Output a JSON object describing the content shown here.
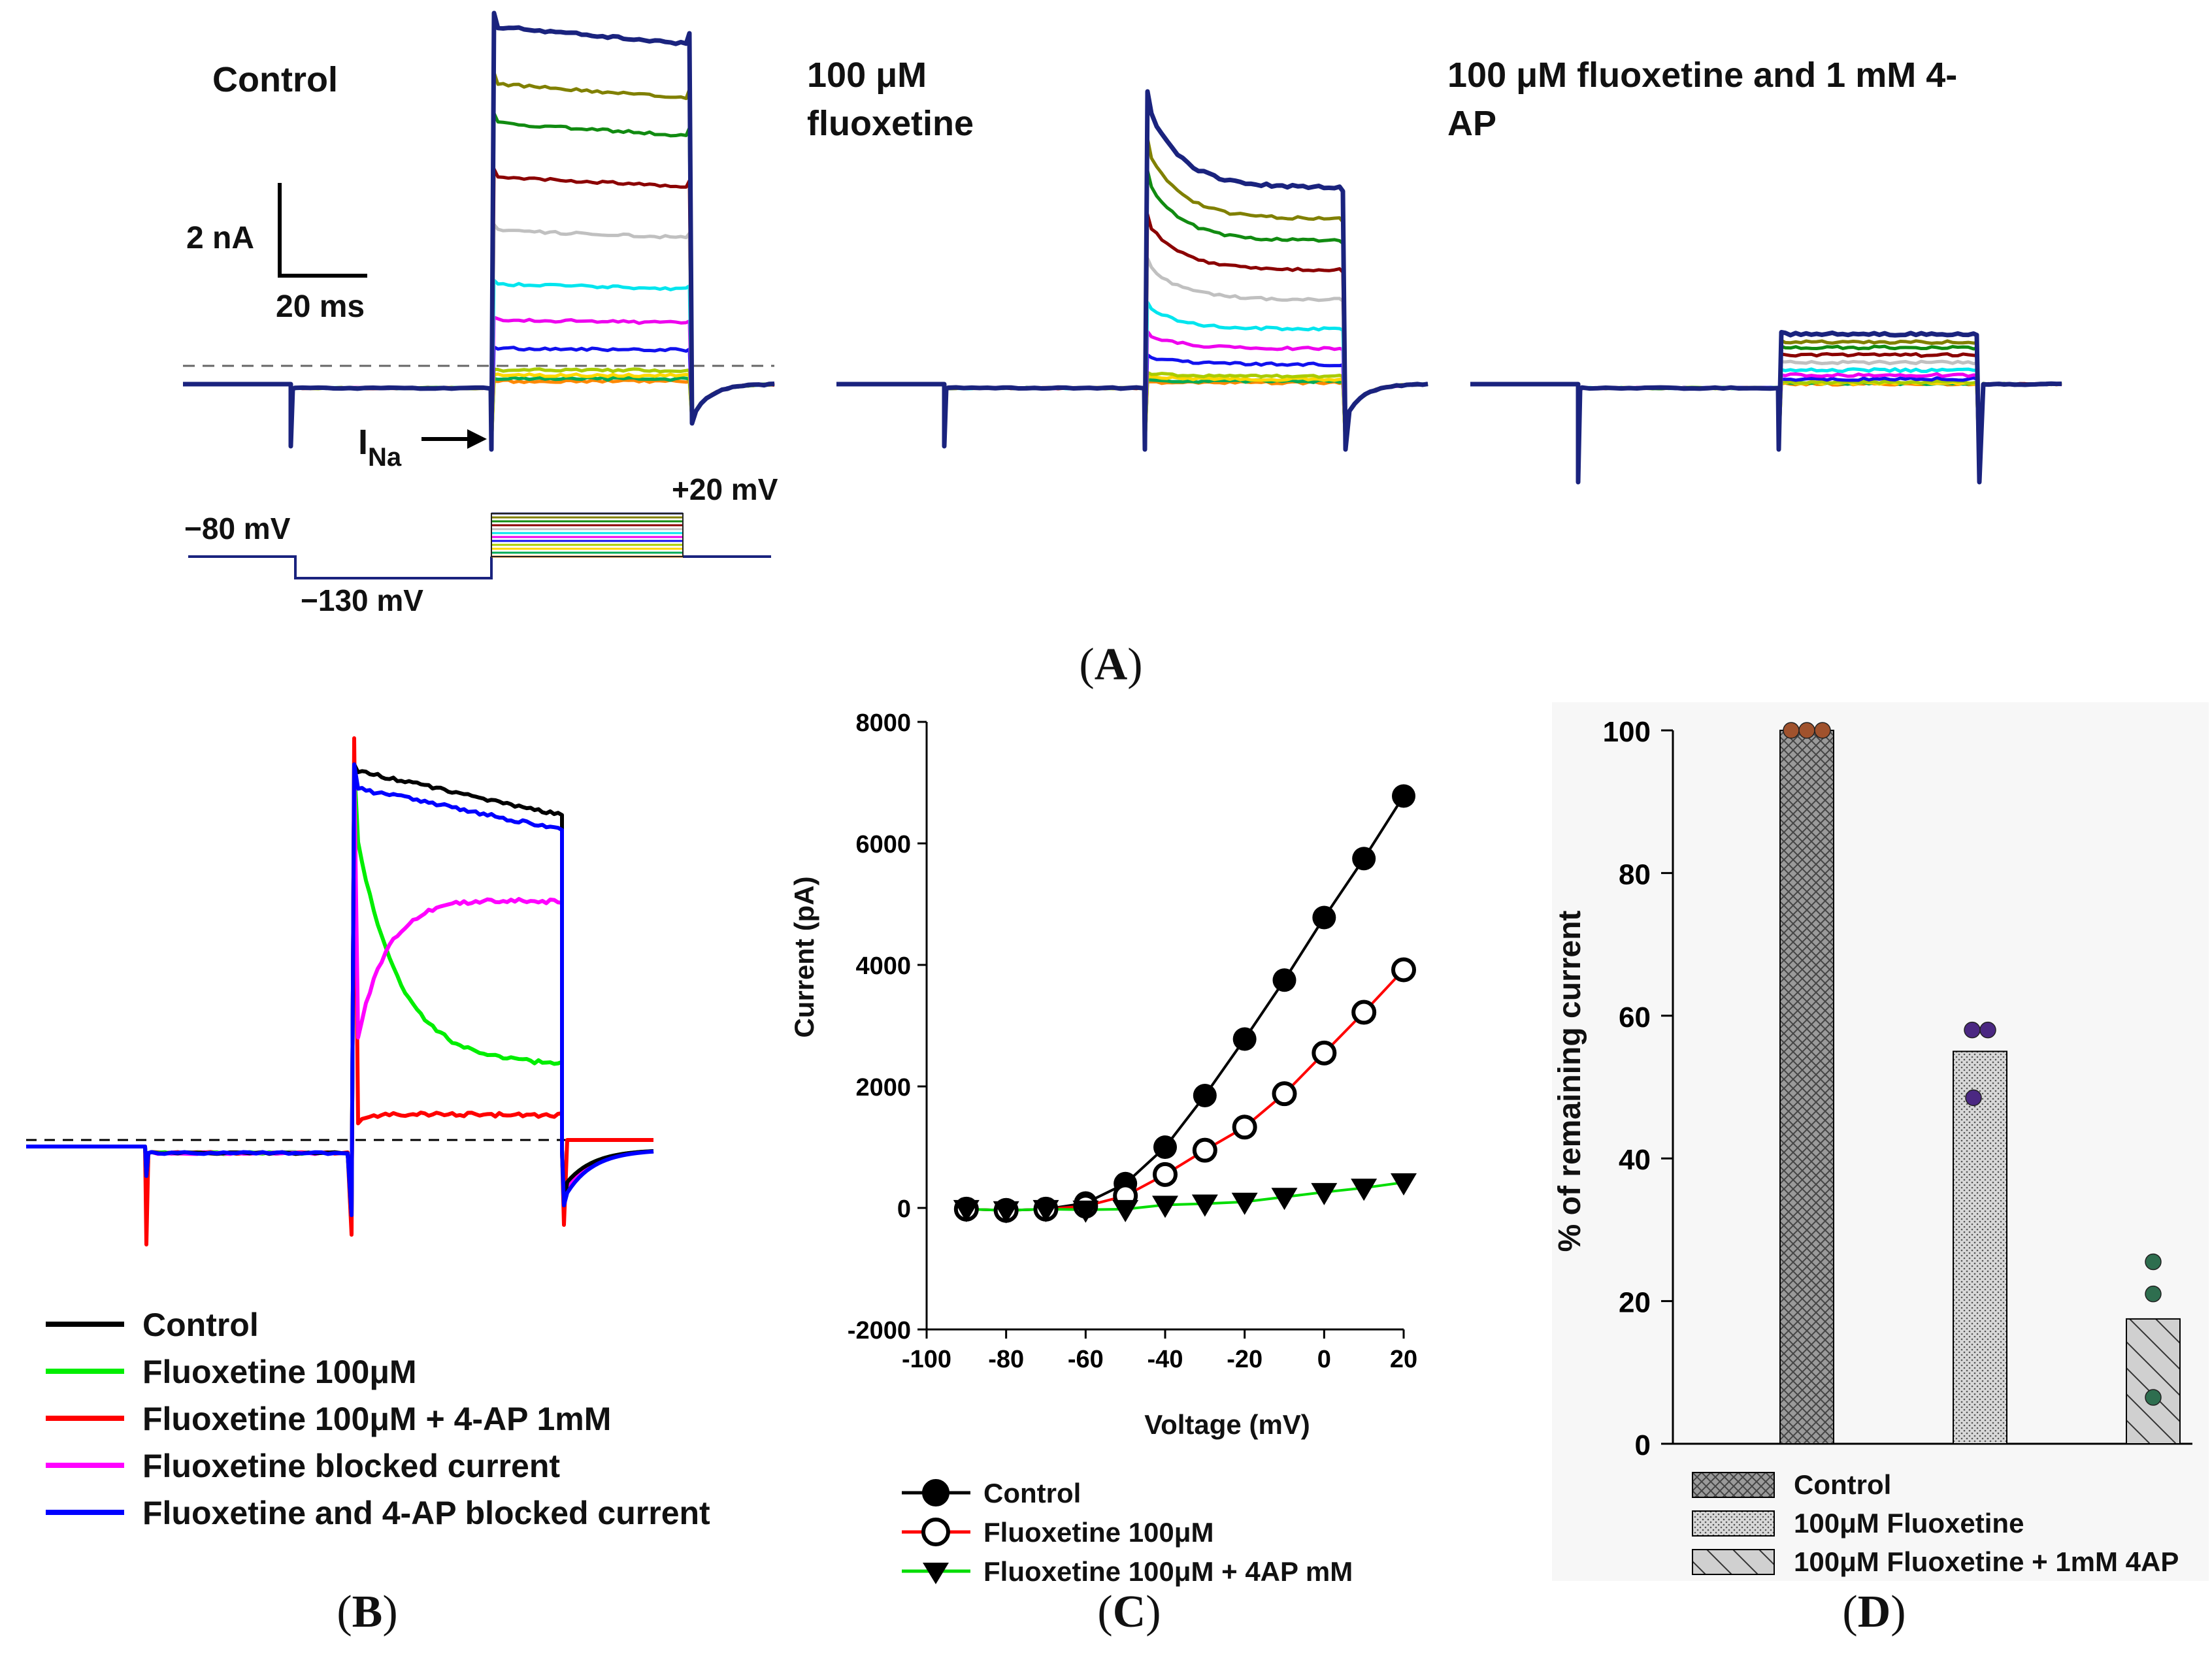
{
  "panel_A": {
    "label": "A",
    "traces": [
      {
        "title": "Control",
        "amplitude_factor": 1.0,
        "inactivation": 0.0
      },
      {
        "title": "100 μM fluoxetine",
        "amplitude_factor": 0.55,
        "inactivation": 0.5
      },
      {
        "title": "100 μM fluoxetine and 1 mM 4-AP",
        "amplitude_factor": 0.14,
        "inactivation": 0.0
      }
    ],
    "scale_current": "2 nA",
    "scale_time": "20 ms",
    "ina_label": "I",
    "ina_sub": "Na",
    "protocol": {
      "holding": "−80 mV",
      "prepulse": "−130 mV",
      "top_step": "+20 mV",
      "step_count": 12
    },
    "trace_colors": [
      "#1a237e",
      "#808000",
      "#118b11",
      "#8b0000",
      "#c0c0c0",
      "#00e5ee",
      "#ee00ee",
      "#1111ee",
      "#aacc00",
      "#ffd700",
      "#00aa55",
      "#ff8800"
    ]
  },
  "panel_B": {
    "label": "B",
    "legend": [
      {
        "label": "Control",
        "color": "#000000"
      },
      {
        "label": "Fluoxetine 100μM",
        "color": "#00ee00"
      },
      {
        "label": "Fluoxetine 100μM + 4-AP 1mM",
        "color": "#ff0000"
      },
      {
        "label": "Fluoxetine blocked current",
        "color": "#ff00ff"
      },
      {
        "label": "Fluoxetine and 4-AP blocked current",
        "color": "#0000ff"
      }
    ]
  },
  "chart_data": [
    {
      "type": "line",
      "panel": "C",
      "xlabel": "Voltage (mV)",
      "ylabel": "Current (pA)",
      "xlim": [
        -100,
        20
      ],
      "ylim": [
        -2000,
        8000
      ],
      "xticks": [
        -100,
        -80,
        -60,
        -40,
        -20,
        0,
        20
      ],
      "yticks": [
        -2000,
        0,
        2000,
        4000,
        6000,
        8000
      ],
      "x": [
        -90,
        -80,
        -70,
        -60,
        -50,
        -40,
        -30,
        -20,
        -10,
        0,
        10,
        20
      ],
      "series": [
        {
          "name": "Control",
          "marker": "filled-circle",
          "line_color": "#000000",
          "values": [
            -20,
            -40,
            -20,
            80,
            400,
            1000,
            1850,
            2780,
            3750,
            4780,
            5750,
            6780
          ]
        },
        {
          "name": "Fluoxetine 100μM",
          "marker": "open-circle",
          "line_color": "#ff0000",
          "values": [
            -20,
            -40,
            -20,
            30,
            200,
            550,
            950,
            1330,
            1880,
            2550,
            3220,
            3920
          ]
        },
        {
          "name": "Fluoxetine 100μM + 4AP mM",
          "marker": "filled-triangle-down",
          "line_color": "#00dd00",
          "values": [
            -20,
            -40,
            -20,
            -30,
            -20,
            50,
            70,
            100,
            180,
            260,
            330,
            420
          ]
        }
      ]
    },
    {
      "type": "bar",
      "panel": "D",
      "ylabel": "% of remaining current",
      "ylim": [
        0,
        100
      ],
      "yticks": [
        0,
        20,
        40,
        60,
        80,
        100
      ],
      "categories": [
        "Control",
        "100μM Fluoxetine",
        "100μM Fluoxetine + 1mM 4AP"
      ],
      "values": [
        100,
        55,
        17.5
      ],
      "points": [
        [
          100,
          100,
          100
        ],
        [
          58,
          58,
          48.5
        ],
        [
          25.5,
          21,
          6.5
        ]
      ],
      "point_colors": [
        "#a0522d",
        "#4b2882",
        "#2e6e4f"
      ],
      "legend": [
        {
          "label": "Control",
          "pattern": "crosshatch"
        },
        {
          "label": "100μM Fluoxetine",
          "pattern": "dots"
        },
        {
          "label": "100μM Fluoxetine + 1mM 4AP",
          "pattern": "diagonal"
        }
      ]
    }
  ]
}
